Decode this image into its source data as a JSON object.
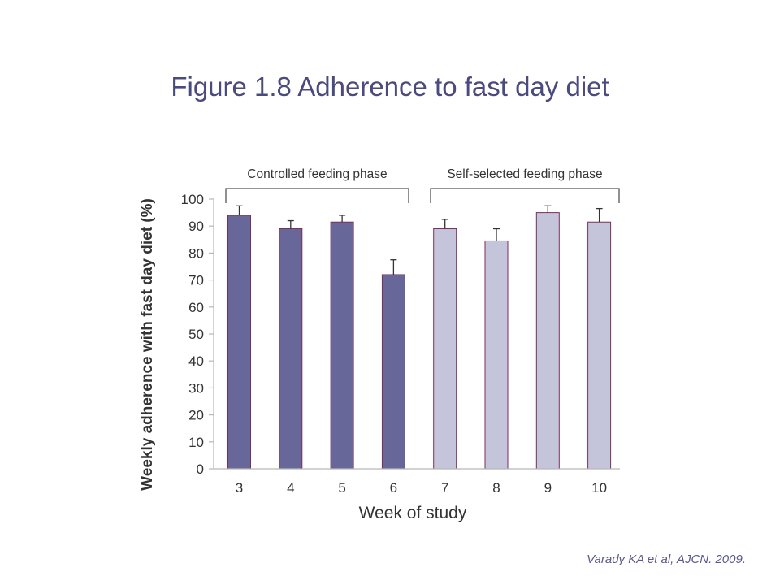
{
  "slide": {
    "title": "Figure 1.8 Adherence to fast day diet",
    "citation": "Varady KA et al, AJCN. 2009."
  },
  "chart_data": {
    "type": "bar",
    "categories": [
      "3",
      "4",
      "5",
      "6",
      "7",
      "8",
      "9",
      "10"
    ],
    "values": [
      94,
      89,
      91.5,
      72,
      89,
      84.5,
      95,
      91.5
    ],
    "error_upper": [
      3.5,
      3,
      2.5,
      5.5,
      3.5,
      4.5,
      2.5,
      5
    ],
    "bar_colors": [
      "#676799",
      "#676799",
      "#676799",
      "#676799",
      "#c4c4da",
      "#c4c4da",
      "#c4c4da",
      "#c4c4da"
    ],
    "bar_edge_color": "#7a2f5a",
    "ylim": [
      0,
      100
    ],
    "yticks": [
      0,
      10,
      20,
      30,
      40,
      50,
      60,
      70,
      80,
      90,
      100
    ],
    "xlabel": "Week of study",
    "ylabel": "Weekly adherence with fast day diet (%)",
    "phases": [
      {
        "label": "Controlled feeding phase",
        "from_category": "3",
        "to_category": "6"
      },
      {
        "label": "Self-selected feeding phase",
        "from_category": "7",
        "to_category": "10"
      }
    ],
    "grid": false
  }
}
